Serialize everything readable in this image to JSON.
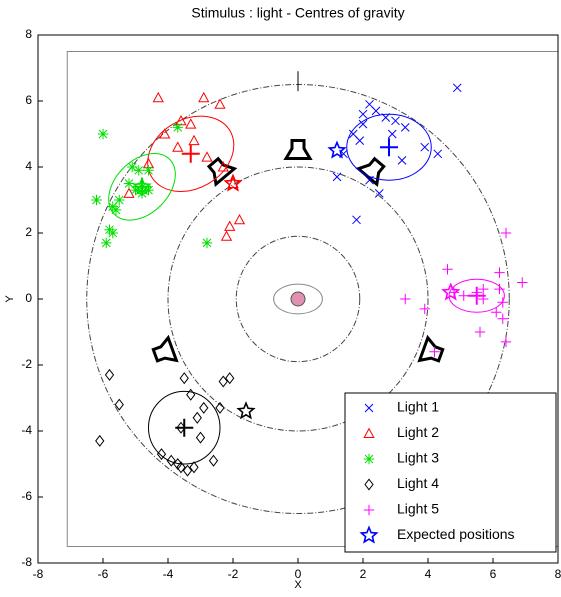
{
  "chart_data": {
    "type": "scatter",
    "title": "Stimulus : light - Centres of gravity",
    "x_label": "X",
    "y_label": "Y",
    "xlim": [
      -8,
      8
    ],
    "ylim": [
      -8,
      8
    ],
    "xticks": [
      -8,
      -6,
      -4,
      -2,
      0,
      2,
      4,
      6,
      8
    ],
    "yticks": [
      -8,
      -6,
      -4,
      -2,
      0,
      2,
      4,
      6,
      8
    ],
    "legend": "lower right",
    "series": [
      {
        "name": "Light 1",
        "color": "#0000ff",
        "marker": "x",
        "x": [
          4.9,
          2.2,
          2.4,
          2.0,
          2.7,
          3.0,
          3.3,
          2.0,
          1.7,
          2.9,
          3.9,
          1.4,
          1.9,
          4.3,
          3.2,
          2.2,
          2.5,
          1.2,
          1.8
        ],
        "y": [
          6.4,
          5.9,
          5.7,
          5.6,
          5.5,
          5.4,
          5.2,
          5.3,
          5.0,
          5.0,
          4.6,
          4.4,
          4.8,
          4.4,
          4.2,
          3.6,
          3.2,
          3.7,
          2.4
        ]
      },
      {
        "name": "Light 2",
        "color": "#ff0000",
        "marker": "triangle",
        "x": [
          -4.3,
          -2.9,
          -2.4,
          -3.6,
          -3.3,
          -4.1,
          -3.2,
          -3.7,
          -2.8,
          -2.3,
          -4.6,
          -5.2,
          -1.8,
          -2.1,
          -2.2,
          -2.0
        ],
        "y": [
          6.1,
          6.1,
          5.9,
          5.4,
          5.3,
          5.0,
          4.8,
          4.6,
          4.3,
          4.0,
          4.1,
          3.2,
          2.4,
          2.2,
          1.9,
          3.5
        ]
      },
      {
        "name": "Light 3",
        "color": "#00e000",
        "marker": "asterisk",
        "x": [
          -6.0,
          -5.1,
          -4.9,
          -4.6,
          -5.2,
          -4.8,
          -4.6,
          -5.0,
          -5.5,
          -6.2,
          -5.7,
          -5.6,
          -5.8,
          -5.7,
          -5.9,
          -2.8,
          -4.8,
          -3.7
        ],
        "y": [
          5.0,
          4.0,
          3.9,
          3.9,
          3.5,
          3.4,
          3.3,
          3.3,
          3.0,
          3.0,
          2.8,
          2.7,
          2.1,
          2.0,
          1.7,
          1.7,
          3.2,
          5.2
        ]
      },
      {
        "name": "Light 4",
        "color": "#000000",
        "marker": "diamond",
        "x": [
          -5.8,
          -3.5,
          -2.1,
          -2.3,
          -5.5,
          -2.9,
          -3.3,
          -2.4,
          -3.1,
          -3.6,
          -3.0,
          -4.2,
          -6.1,
          -3.9,
          -3.7,
          -3.6,
          -3.2,
          -2.6,
          -3.4
        ],
        "y": [
          -2.3,
          -2.4,
          -2.4,
          -2.5,
          -3.2,
          -3.3,
          -2.9,
          -3.3,
          -3.6,
          -3.9,
          -4.2,
          -4.7,
          -4.3,
          -4.9,
          -5.0,
          -5.1,
          -5.1,
          -4.9,
          -5.2
        ]
      },
      {
        "name": "Light 5",
        "color": "#ff00ff",
        "marker": "plus",
        "x": [
          6.4,
          6.2,
          4.6,
          3.3,
          3.9,
          5.1,
          5.5,
          5.7,
          5.7,
          6.2,
          6.3,
          6.9,
          4.8,
          6.1,
          6.3,
          5.6,
          4.2,
          6.4
        ],
        "y": [
          2.0,
          0.8,
          0.9,
          0.0,
          -0.3,
          0.1,
          0.2,
          0.3,
          0.0,
          0.3,
          -0.1,
          0.5,
          0.2,
          -0.4,
          -0.6,
          -1.0,
          -1.6,
          -1.3
        ]
      },
      {
        "name": "Expected positions",
        "color": "#0000ff",
        "marker": "star",
        "point_colors": [
          "#0000ff",
          "#ff0000",
          "#00e000",
          "#000000",
          "#ff00ff"
        ],
        "x": [
          1.2,
          -2.0,
          -4.8,
          -1.6,
          4.7
        ],
        "y": [
          4.5,
          3.5,
          3.4,
          -3.4,
          0.2
        ]
      }
    ]
  }
}
